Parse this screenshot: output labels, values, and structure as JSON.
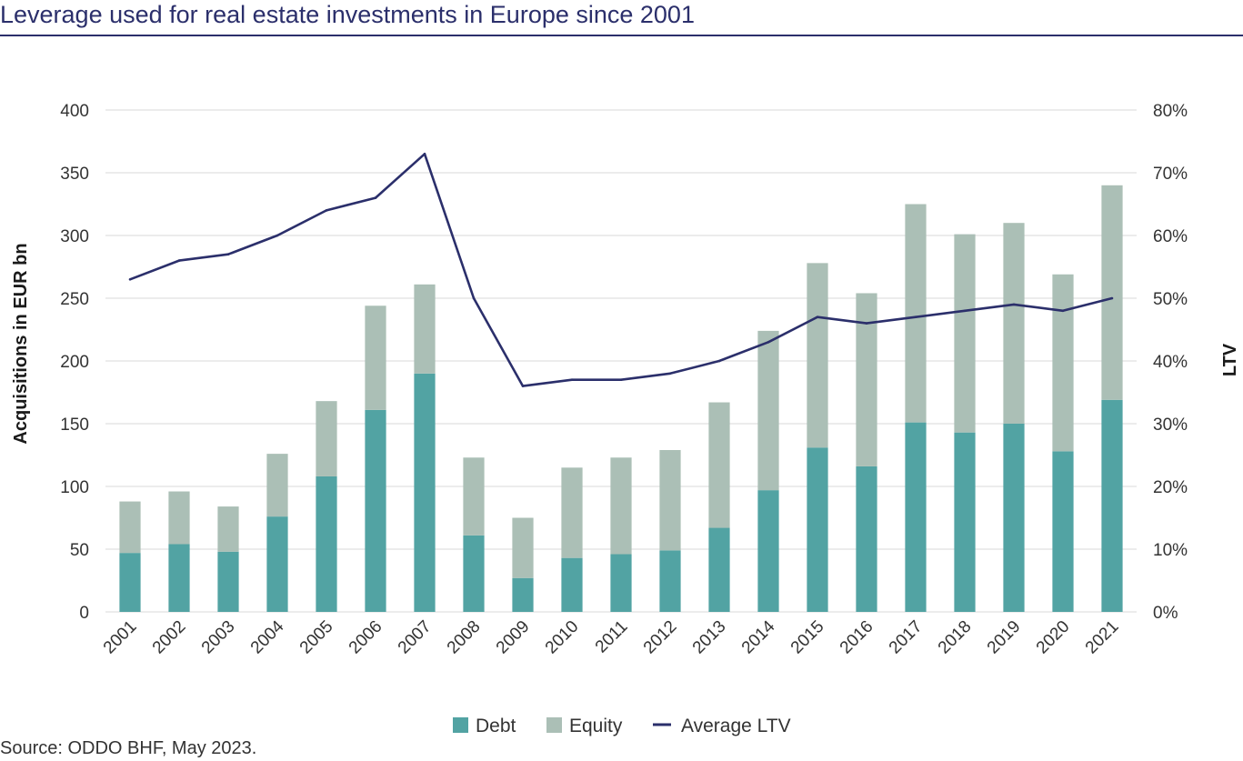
{
  "title": "Leverage used for real estate investments in Europe since 2001",
  "source": "Source: ODDO BHF, May 2023.",
  "colors": {
    "debt": "#52a3a3",
    "equity": "#abbfb6",
    "ltv": "#2b2f6b",
    "grid": "#d9d9d9",
    "title": "#2b2f6b"
  },
  "chart_data": {
    "type": "bar",
    "stacked": true,
    "categories": [
      "2001",
      "2002",
      "2003",
      "2004",
      "2005",
      "2006",
      "2007",
      "2008",
      "2009",
      "2010",
      "2011",
      "2012",
      "2013",
      "2014",
      "2015",
      "2016",
      "2017",
      "2018",
      "2019",
      "2020",
      "2021"
    ],
    "series": [
      {
        "name": "Debt",
        "type": "bar",
        "axis": "left",
        "values": [
          47,
          54,
          48,
          76,
          108,
          161,
          190,
          61,
          27,
          43,
          46,
          49,
          67,
          97,
          131,
          116,
          151,
          143,
          150,
          128,
          169
        ]
      },
      {
        "name": "Equity",
        "type": "bar",
        "axis": "left",
        "values": [
          41,
          42,
          36,
          50,
          60,
          83,
          71,
          62,
          48,
          72,
          77,
          80,
          100,
          127,
          147,
          138,
          174,
          158,
          160,
          141,
          171
        ]
      },
      {
        "name": "Average LTV",
        "type": "line",
        "axis": "right",
        "values": [
          53,
          56,
          57,
          60,
          64,
          66,
          73,
          50,
          36,
          37,
          37,
          38,
          40,
          43,
          47,
          46,
          47,
          48,
          49,
          48,
          50
        ]
      }
    ],
    "ylabel": "Acquisitions in EUR bn",
    "ylabel_right": "LTV",
    "ylim": [
      0,
      400
    ],
    "ylim_right": [
      0,
      80
    ],
    "yticks": [
      "0",
      "50",
      "100",
      "150",
      "200",
      "250",
      "300",
      "350",
      "400"
    ],
    "yticks_right": [
      "0%",
      "10%",
      "20%",
      "30%",
      "40%",
      "50%",
      "60%",
      "70%",
      "80%"
    ],
    "grid": true,
    "legend": "bottom-center"
  }
}
